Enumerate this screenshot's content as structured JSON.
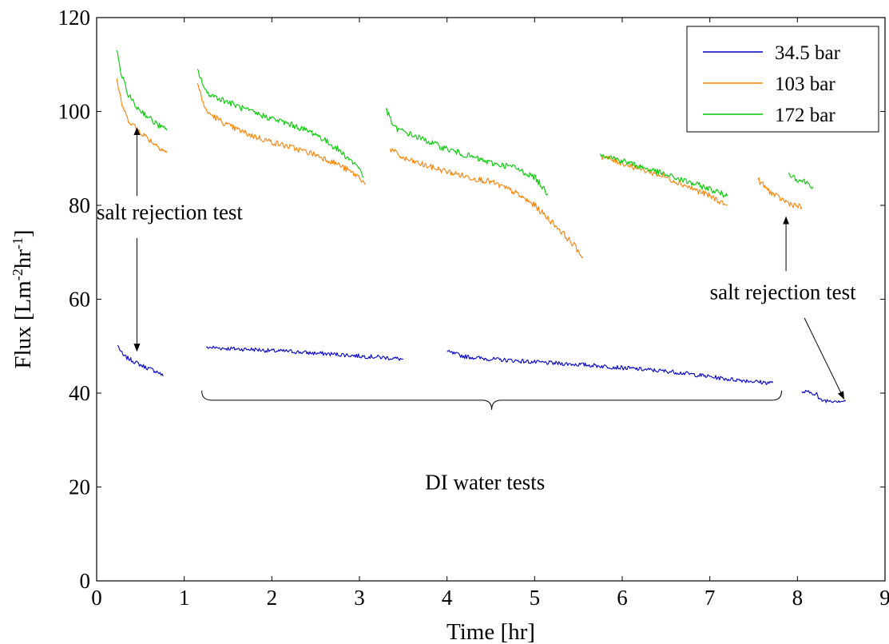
{
  "chart_data": {
    "type": "line",
    "title": "",
    "xlabel": "Time [hr]",
    "ylabel": "Flux [Lm",
    "ylabel_sup1": "-2",
    "ylabel_mid": "hr",
    "ylabel_sup2": "-1",
    "ylabel_end": "]",
    "xlim": [
      0,
      9
    ],
    "ylim": [
      0,
      120
    ],
    "x_ticks": [
      0,
      1,
      2,
      3,
      4,
      5,
      6,
      7,
      8,
      9
    ],
    "y_ticks": [
      0,
      20,
      40,
      60,
      80,
      100,
      120
    ],
    "grid": false,
    "legend_position": "top-right",
    "series": [
      {
        "name": "34.5 bar",
        "color": "#0000cc",
        "segments": [
          [
            [
              0.24,
              50.2
            ],
            [
              0.3,
              48.0
            ],
            [
              0.4,
              47.0
            ],
            [
              0.5,
              46.0
            ],
            [
              0.6,
              45.2
            ],
            [
              0.7,
              44.5
            ],
            [
              0.76,
              43.6
            ]
          ],
          [
            [
              1.25,
              49.8
            ],
            [
              1.4,
              49.6
            ],
            [
              1.6,
              49.4
            ],
            [
              1.8,
              49.3
            ],
            [
              2.0,
              49.0
            ],
            [
              2.2,
              48.9
            ],
            [
              2.4,
              48.6
            ],
            [
              2.6,
              48.4
            ],
            [
              2.8,
              48.2
            ],
            [
              3.0,
              47.9
            ],
            [
              3.2,
              47.7
            ],
            [
              3.4,
              47.4
            ],
            [
              3.5,
              47.2
            ]
          ],
          [
            [
              4.0,
              48.8
            ],
            [
              4.2,
              47.8
            ],
            [
              4.4,
              47.4
            ],
            [
              4.6,
              47.1
            ],
            [
              4.8,
              46.9
            ],
            [
              5.0,
              46.6
            ],
            [
              5.2,
              46.4
            ],
            [
              5.4,
              46.2
            ],
            [
              5.6,
              46.0
            ],
            [
              5.8,
              45.7
            ],
            [
              6.0,
              45.4
            ],
            [
              6.2,
              45.1
            ],
            [
              6.4,
              44.8
            ],
            [
              6.6,
              44.5
            ],
            [
              6.8,
              44.0
            ],
            [
              7.0,
              43.5
            ],
            [
              7.2,
              43.0
            ],
            [
              7.4,
              42.7
            ],
            [
              7.6,
              42.3
            ],
            [
              7.72,
              42.2
            ]
          ],
          [
            [
              8.05,
              40.3
            ],
            [
              8.15,
              40.1
            ],
            [
              8.22,
              39.9
            ],
            [
              8.25,
              38.5
            ],
            [
              8.35,
              38.4
            ],
            [
              8.45,
              38.4
            ],
            [
              8.55,
              38.3
            ]
          ]
        ]
      },
      {
        "name": "103 bar",
        "color": "#ff8000",
        "segments": [
          [
            [
              0.23,
              107.0
            ],
            [
              0.28,
              102.0
            ],
            [
              0.35,
              98.5
            ],
            [
              0.45,
              96.5
            ],
            [
              0.55,
              94.8
            ],
            [
              0.65,
              93.3
            ],
            [
              0.75,
              92.0
            ],
            [
              0.8,
              91.2
            ]
          ],
          [
            [
              1.15,
              106.0
            ],
            [
              1.25,
              100.0
            ],
            [
              1.5,
              97.0
            ],
            [
              1.75,
              95.0
            ],
            [
              2.0,
              93.5
            ],
            [
              2.25,
              92.2
            ],
            [
              2.5,
              90.8
            ],
            [
              2.75,
              88.8
            ],
            [
              3.0,
              86.0
            ],
            [
              3.07,
              84.5
            ]
          ],
          [
            [
              3.35,
              92.0
            ],
            [
              3.5,
              90.0
            ],
            [
              3.75,
              88.5
            ],
            [
              4.0,
              87.2
            ],
            [
              4.25,
              86.0
            ],
            [
              4.5,
              85.0
            ],
            [
              4.75,
              83.0
            ],
            [
              5.0,
              80.0
            ],
            [
              5.25,
              75.5
            ],
            [
              5.45,
              71.5
            ],
            [
              5.55,
              69.0
            ]
          ],
          [
            [
              5.75,
              90.5
            ],
            [
              6.0,
              89.0
            ],
            [
              6.25,
              87.5
            ],
            [
              6.5,
              86.0
            ],
            [
              6.75,
              84.0
            ],
            [
              7.0,
              82.0
            ],
            [
              7.2,
              80.0
            ]
          ],
          [
            [
              7.55,
              85.5
            ],
            [
              7.65,
              83.5
            ],
            [
              7.75,
              82.0
            ],
            [
              7.9,
              80.5
            ],
            [
              8.05,
              79.5
            ]
          ]
        ]
      },
      {
        "name": "172 bar",
        "color": "#00cc00",
        "segments": [
          [
            [
              0.23,
              113.0
            ],
            [
              0.28,
              108.0
            ],
            [
              0.35,
              104.0
            ],
            [
              0.45,
              101.0
            ],
            [
              0.55,
              99.5
            ],
            [
              0.65,
              97.8
            ],
            [
              0.75,
              96.5
            ],
            [
              0.8,
              96.0
            ]
          ],
          [
            [
              1.15,
              109.0
            ],
            [
              1.25,
              104.0
            ],
            [
              1.5,
              102.0
            ],
            [
              1.75,
              100.0
            ],
            [
              2.0,
              98.5
            ],
            [
              2.25,
              97.0
            ],
            [
              2.5,
              95.2
            ],
            [
              2.75,
              92.0
            ],
            [
              3.0,
              88.0
            ],
            [
              3.05,
              86.0
            ]
          ],
          [
            [
              3.3,
              100.5
            ],
            [
              3.4,
              96.5
            ],
            [
              3.6,
              95.0
            ],
            [
              3.8,
              93.5
            ],
            [
              4.0,
              92.0
            ],
            [
              4.25,
              90.5
            ],
            [
              4.5,
              89.0
            ],
            [
              4.75,
              88.2
            ],
            [
              5.0,
              86.0
            ],
            [
              5.15,
              82.5
            ]
          ],
          [
            [
              5.75,
              91.0
            ],
            [
              6.0,
              89.5
            ],
            [
              6.25,
              88.0
            ],
            [
              6.5,
              86.5
            ],
            [
              6.75,
              85.0
            ],
            [
              7.0,
              83.5
            ],
            [
              7.2,
              82.0
            ]
          ],
          [
            [
              7.9,
              87.0
            ],
            [
              8.0,
              85.5
            ],
            [
              8.1,
              85.0
            ],
            [
              8.18,
              84.0
            ]
          ]
        ]
      }
    ],
    "annotations": [
      {
        "text": "salt rejection test",
        "x": 0.0,
        "y": 77.0,
        "arrows": [
          [
            [
              0.46,
              82.0
            ],
            [
              0.46,
              96.5
            ]
          ],
          [
            [
              0.46,
              73.0
            ],
            [
              0.46,
              49.0
            ]
          ]
        ]
      },
      {
        "text": "salt rejection test",
        "x": 7.0,
        "y": 60.0,
        "arrows": [
          [
            [
              7.87,
              66.0
            ],
            [
              7.87,
              77.5
            ]
          ],
          [
            [
              8.08,
              56.0
            ],
            [
              8.53,
              38.8
            ]
          ]
        ]
      },
      {
        "text": "DI water tests",
        "x": 3.75,
        "y": 19.5
      }
    ],
    "brace": {
      "x_from": 1.2,
      "x_to": 7.82,
      "y": 38.5,
      "label": "DI water tests"
    }
  }
}
